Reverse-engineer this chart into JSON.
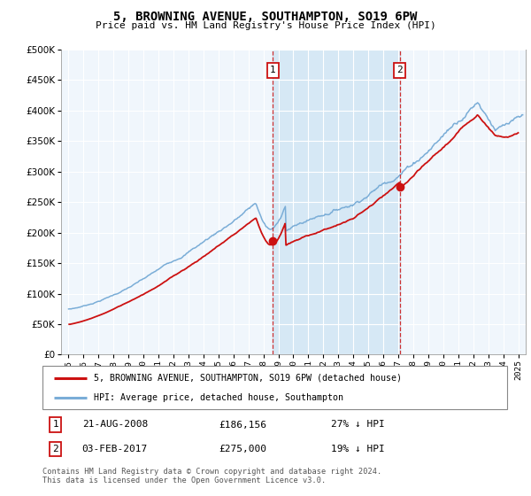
{
  "title": "5, BROWNING AVENUE, SOUTHAMPTON, SO19 6PW",
  "subtitle": "Price paid vs. HM Land Registry's House Price Index (HPI)",
  "ytick_values": [
    0,
    50000,
    100000,
    150000,
    200000,
    250000,
    300000,
    350000,
    400000,
    450000,
    500000
  ],
  "ylim": [
    0,
    500000
  ],
  "xlim_start": 1994.5,
  "xlim_end": 2025.5,
  "hpi_color": "#7aadd7",
  "price_color": "#cc1111",
  "plot_bg_color": "#f0f6fc",
  "shade_color": "#d6e8f5",
  "event1_x": 2008.64,
  "event1_y": 186156,
  "event2_x": 2017.09,
  "event2_y": 275000,
  "event1_date": "21-AUG-2008",
  "event1_price": "£186,156",
  "event1_info": "27% ↓ HPI",
  "event2_date": "03-FEB-2017",
  "event2_price": "£275,000",
  "event2_info": "19% ↓ HPI",
  "legend_line1": "5, BROWNING AVENUE, SOUTHAMPTON, SO19 6PW (detached house)",
  "legend_line2": "HPI: Average price, detached house, Southampton",
  "footer": "Contains HM Land Registry data © Crown copyright and database right 2024.\nThis data is licensed under the Open Government Licence v3.0.",
  "xticks": [
    1995,
    1996,
    1997,
    1998,
    1999,
    2000,
    2001,
    2002,
    2003,
    2004,
    2005,
    2006,
    2007,
    2008,
    2009,
    2010,
    2011,
    2012,
    2013,
    2014,
    2015,
    2016,
    2017,
    2018,
    2019,
    2020,
    2021,
    2022,
    2023,
    2024,
    2025
  ]
}
